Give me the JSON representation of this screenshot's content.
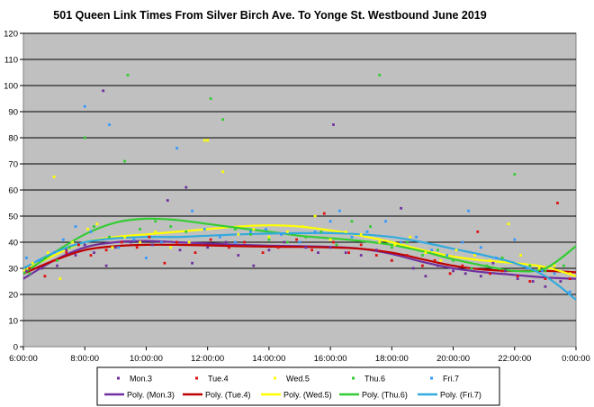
{
  "chart_data": {
    "type": "scatter",
    "title": "501 Queen Link Times From Silver Birch Ave. To Yonge St. Westbound June 2019",
    "xlabel": "",
    "ylabel": "",
    "xlim": [
      6,
      24
    ],
    "ylim": [
      0,
      120
    ],
    "y_ticks": [
      0,
      10,
      20,
      30,
      40,
      50,
      60,
      70,
      80,
      90,
      100,
      110,
      120
    ],
    "x_ticks": [
      6,
      8,
      10,
      12,
      14,
      16,
      18,
      20,
      22,
      24
    ],
    "x_tick_labels": [
      "6:00:00",
      "8:00:00",
      "10:00:00",
      "12:00:00",
      "14:00:00",
      "16:00:00",
      "18:00:00",
      "20:00:00",
      "22:00:00",
      "0:00:00"
    ],
    "grid": true,
    "legend_position": "bottom",
    "series": [
      {
        "name": "Mon.3",
        "color": "#7030a0",
        "points": [
          [
            6.1,
            29
          ],
          [
            6.6,
            30
          ],
          [
            7.1,
            31
          ],
          [
            7.4,
            37
          ],
          [
            7.7,
            35
          ],
          [
            8.0,
            39
          ],
          [
            8.3,
            36
          ],
          [
            8.6,
            98
          ],
          [
            8.7,
            31
          ],
          [
            9.0,
            38
          ],
          [
            9.5,
            40
          ],
          [
            10.2,
            39
          ],
          [
            10.7,
            56
          ],
          [
            11.1,
            37
          ],
          [
            11.3,
            61
          ],
          [
            11.5,
            32
          ],
          [
            12.0,
            38
          ],
          [
            12.6,
            40
          ],
          [
            13.0,
            35
          ],
          [
            13.5,
            31
          ],
          [
            14.0,
            37
          ],
          [
            14.5,
            40
          ],
          [
            15.2,
            38
          ],
          [
            15.6,
            36
          ],
          [
            16.0,
            38
          ],
          [
            16.1,
            85
          ],
          [
            16.5,
            36
          ],
          [
            17.0,
            35
          ],
          [
            17.5,
            37
          ],
          [
            18.0,
            33
          ],
          [
            18.3,
            53
          ],
          [
            18.7,
            30
          ],
          [
            19.1,
            27
          ],
          [
            19.5,
            31
          ],
          [
            20.0,
            29
          ],
          [
            20.4,
            28
          ],
          [
            20.9,
            27
          ],
          [
            21.3,
            32
          ],
          [
            21.7,
            29
          ],
          [
            22.1,
            26
          ],
          [
            22.6,
            25
          ],
          [
            23.0,
            23
          ],
          [
            23.5,
            25
          ]
        ]
      },
      {
        "name": "Tue.4",
        "color": "#e01010",
        "points": [
          [
            6.2,
            30
          ],
          [
            6.7,
            27
          ],
          [
            7.0,
            33
          ],
          [
            7.4,
            36
          ],
          [
            7.8,
            39
          ],
          [
            8.2,
            35
          ],
          [
            8.7,
            37
          ],
          [
            9.2,
            40
          ],
          [
            9.7,
            38
          ],
          [
            10.1,
            42
          ],
          [
            10.6,
            32
          ],
          [
            11.0,
            40
          ],
          [
            11.6,
            36
          ],
          [
            12.1,
            41
          ],
          [
            12.7,
            38
          ],
          [
            13.2,
            40
          ],
          [
            13.8,
            36
          ],
          [
            14.3,
            38
          ],
          [
            14.9,
            41
          ],
          [
            15.4,
            37
          ],
          [
            15.8,
            51
          ],
          [
            16.1,
            40
          ],
          [
            16.6,
            36
          ],
          [
            17.0,
            39
          ],
          [
            17.5,
            35
          ],
          [
            18.0,
            33
          ],
          [
            18.5,
            35
          ],
          [
            19.0,
            31
          ],
          [
            19.4,
            33
          ],
          [
            19.9,
            28
          ],
          [
            20.3,
            31
          ],
          [
            20.8,
            44
          ],
          [
            21.2,
            28
          ],
          [
            21.6,
            29
          ],
          [
            22.1,
            27
          ],
          [
            22.5,
            25
          ],
          [
            23.0,
            26
          ],
          [
            23.4,
            55
          ],
          [
            23.8,
            26
          ]
        ]
      },
      {
        "name": "Wed.5",
        "color": "#ffff00",
        "points": [
          [
            6.3,
            32
          ],
          [
            6.8,
            36
          ],
          [
            7.0,
            65
          ],
          [
            7.2,
            26
          ],
          [
            7.6,
            40
          ],
          [
            8.1,
            45
          ],
          [
            8.4,
            47
          ],
          [
            8.9,
            38
          ],
          [
            9.3,
            42
          ],
          [
            9.8,
            40
          ],
          [
            10.3,
            44
          ],
          [
            10.8,
            38
          ],
          [
            11.4,
            40
          ],
          [
            11.9,
            79
          ],
          [
            12.0,
            79
          ],
          [
            12.5,
            67
          ],
          [
            13.0,
            43
          ],
          [
            13.5,
            45
          ],
          [
            14.0,
            42
          ],
          [
            14.6,
            44
          ],
          [
            15.1,
            46
          ],
          [
            15.5,
            50
          ],
          [
            16.0,
            41
          ],
          [
            16.5,
            44
          ],
          [
            17.0,
            43
          ],
          [
            17.6,
            40
          ],
          [
            18.1,
            39
          ],
          [
            18.6,
            42
          ],
          [
            19.1,
            36
          ],
          [
            19.6,
            33
          ],
          [
            20.1,
            37
          ],
          [
            20.7,
            35
          ],
          [
            21.2,
            33
          ],
          [
            21.8,
            47
          ],
          [
            22.2,
            35
          ],
          [
            22.8,
            30
          ],
          [
            23.3,
            31
          ],
          [
            23.8,
            28
          ]
        ]
      },
      {
        "name": "Thu.6",
        "color": "#33cc33",
        "points": [
          [
            6.2,
            28
          ],
          [
            6.7,
            34
          ],
          [
            7.1,
            33
          ],
          [
            7.5,
            38
          ],
          [
            8.0,
            80
          ],
          [
            8.3,
            46
          ],
          [
            8.8,
            42
          ],
          [
            9.3,
            71
          ],
          [
            9.4,
            104
          ],
          [
            9.8,
            45
          ],
          [
            10.3,
            48
          ],
          [
            10.8,
            46
          ],
          [
            11.3,
            44
          ],
          [
            12.1,
            95
          ],
          [
            12.5,
            87
          ],
          [
            12.9,
            45
          ],
          [
            13.4,
            43
          ],
          [
            14.0,
            41
          ],
          [
            14.6,
            40
          ],
          [
            15.2,
            42
          ],
          [
            15.7,
            44
          ],
          [
            16.2,
            39
          ],
          [
            16.7,
            48
          ],
          [
            17.3,
            46
          ],
          [
            17.6,
            104
          ],
          [
            18.0,
            38
          ],
          [
            18.5,
            40
          ],
          [
            19.0,
            35
          ],
          [
            19.5,
            37
          ],
          [
            20.0,
            33
          ],
          [
            20.6,
            30
          ],
          [
            21.1,
            31
          ],
          [
            21.6,
            34
          ],
          [
            22.0,
            66
          ],
          [
            22.5,
            31
          ],
          [
            23.0,
            29
          ],
          [
            23.6,
            31
          ]
        ]
      },
      {
        "name": "Fri.7",
        "color": "#3399ff",
        "points": [
          [
            6.1,
            34
          ],
          [
            6.5,
            33
          ],
          [
            7.0,
            36
          ],
          [
            7.3,
            41
          ],
          [
            7.7,
            46
          ],
          [
            8.0,
            92
          ],
          [
            8.2,
            44
          ],
          [
            8.8,
            85
          ],
          [
            9.1,
            38
          ],
          [
            9.6,
            41
          ],
          [
            10.0,
            34
          ],
          [
            10.5,
            40
          ],
          [
            11.0,
            76
          ],
          [
            11.5,
            52
          ],
          [
            11.9,
            45
          ],
          [
            12.4,
            42
          ],
          [
            12.9,
            40
          ],
          [
            13.4,
            44
          ],
          [
            13.9,
            45
          ],
          [
            14.4,
            43
          ],
          [
            15.0,
            40
          ],
          [
            15.5,
            44
          ],
          [
            16.0,
            48
          ],
          [
            16.3,
            52
          ],
          [
            16.7,
            42
          ],
          [
            17.2,
            44
          ],
          [
            17.8,
            48
          ],
          [
            18.3,
            40
          ],
          [
            18.8,
            42
          ],
          [
            19.3,
            37
          ],
          [
            19.8,
            35
          ],
          [
            20.3,
            40
          ],
          [
            20.5,
            52
          ],
          [
            20.9,
            38
          ],
          [
            21.4,
            34
          ],
          [
            22.0,
            41
          ],
          [
            22.4,
            30
          ],
          [
            22.9,
            29
          ],
          [
            23.3,
            28
          ],
          [
            23.8,
            21
          ]
        ]
      }
    ],
    "trendlines": [
      {
        "name": "Poly. (Mon.3)",
        "color": "#7030a0",
        "points": [
          [
            6,
            26
          ],
          [
            7,
            33
          ],
          [
            8,
            38
          ],
          [
            9,
            40
          ],
          [
            10,
            40.5
          ],
          [
            11,
            40
          ],
          [
            12,
            39.5
          ],
          [
            13,
            39
          ],
          [
            14,
            38.7
          ],
          [
            15,
            38.5
          ],
          [
            16,
            38.2
          ],
          [
            17,
            37.5
          ],
          [
            18,
            35.5
          ],
          [
            19,
            32.5
          ],
          [
            20,
            30
          ],
          [
            21,
            28.5
          ],
          [
            22,
            27.5
          ],
          [
            23,
            26.5
          ],
          [
            24,
            26
          ]
        ]
      },
      {
        "name": "Poly. (Tue.4)",
        "color": "#c00000",
        "points": [
          [
            6,
            28
          ],
          [
            7,
            33
          ],
          [
            8,
            37
          ],
          [
            9,
            38.5
          ],
          [
            10,
            39
          ],
          [
            11,
            39
          ],
          [
            12,
            38.8
          ],
          [
            13,
            38.5
          ],
          [
            14,
            38.3
          ],
          [
            15,
            38.2
          ],
          [
            16,
            38
          ],
          [
            17,
            37.5
          ],
          [
            18,
            36
          ],
          [
            19,
            33.5
          ],
          [
            20,
            31
          ],
          [
            21,
            29.5
          ],
          [
            22,
            29
          ],
          [
            23,
            29
          ],
          [
            24,
            28.5
          ]
        ]
      },
      {
        "name": "Poly. (Wed.5)",
        "color": "#ffff00",
        "points": [
          [
            6,
            29
          ],
          [
            7,
            35
          ],
          [
            8,
            40
          ],
          [
            9,
            42
          ],
          [
            10,
            43
          ],
          [
            11,
            44
          ],
          [
            12,
            45
          ],
          [
            13,
            46
          ],
          [
            14,
            46.5
          ],
          [
            15,
            46
          ],
          [
            16,
            44.5
          ],
          [
            17,
            42.5
          ],
          [
            18,
            40
          ],
          [
            19,
            37
          ],
          [
            20,
            34.5
          ],
          [
            21,
            33
          ],
          [
            22,
            32
          ],
          [
            23,
            30.5
          ],
          [
            24,
            27
          ]
        ]
      },
      {
        "name": "Poly. (Thu.6)",
        "color": "#33cc33",
        "points": [
          [
            6,
            28
          ],
          [
            7,
            36
          ],
          [
            8,
            43
          ],
          [
            9,
            47.5
          ],
          [
            10,
            49
          ],
          [
            11,
            48.5
          ],
          [
            12,
            47
          ],
          [
            13,
            45.5
          ],
          [
            14,
            44
          ],
          [
            15,
            42.5
          ],
          [
            16,
            41.5
          ],
          [
            17,
            40.5
          ],
          [
            18,
            39
          ],
          [
            19,
            36.5
          ],
          [
            20,
            33.5
          ],
          [
            21,
            31
          ],
          [
            22,
            29
          ],
          [
            23,
            30
          ],
          [
            24,
            38.5
          ]
        ]
      },
      {
        "name": "Poly. (Fri.7)",
        "color": "#33aadd",
        "points": [
          [
            6,
            30
          ],
          [
            7,
            36
          ],
          [
            8,
            40
          ],
          [
            9,
            41.5
          ],
          [
            10,
            42
          ],
          [
            11,
            42
          ],
          [
            12,
            42.5
          ],
          [
            13,
            43
          ],
          [
            14,
            43.3
          ],
          [
            15,
            43.5
          ],
          [
            16,
            43.5
          ],
          [
            17,
            43
          ],
          [
            18,
            42
          ],
          [
            19,
            40
          ],
          [
            20,
            37.5
          ],
          [
            21,
            35
          ],
          [
            22,
            32
          ],
          [
            23,
            27
          ],
          [
            24,
            18
          ]
        ]
      }
    ]
  }
}
